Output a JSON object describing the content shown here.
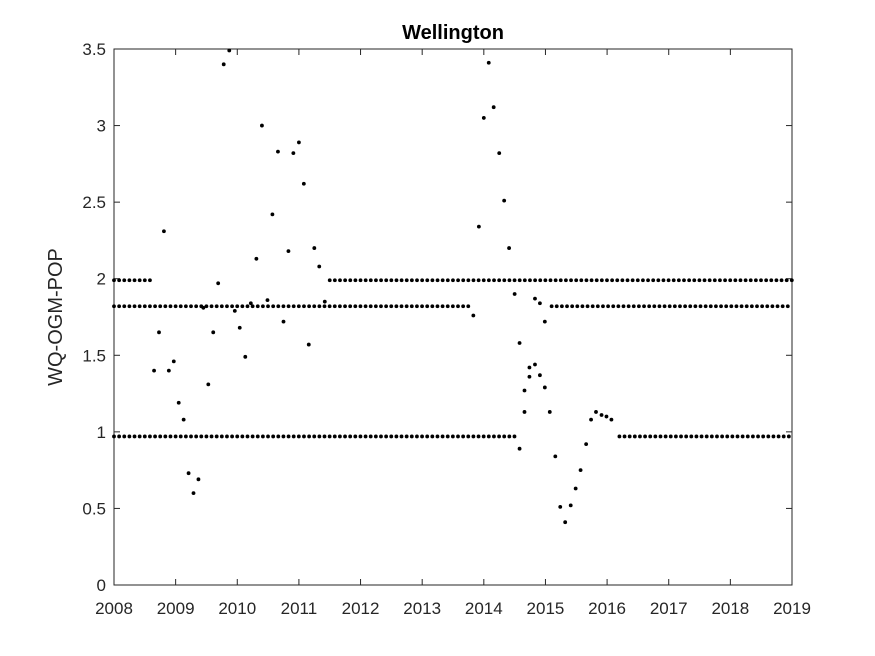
{
  "chart_data": {
    "type": "scatter",
    "title": "Wellington",
    "xlabel": "",
    "ylabel": "WQ-OGM-POP",
    "xlim": [
      2008,
      2019
    ],
    "ylim": [
      0,
      3.5
    ],
    "x_ticks": [
      "2008",
      "2009",
      "2010",
      "2011",
      "2012",
      "2013",
      "2014",
      "2015",
      "2016",
      "2017",
      "2018",
      "2019"
    ],
    "y_ticks": [
      "0",
      "0.5",
      "1",
      "1.5",
      "2",
      "2.5",
      "3",
      "3.5"
    ],
    "grid": false,
    "marker_color": "#000000",
    "series": [
      {
        "baselines": [
          {
            "y": 0.97,
            "segments": [
              [
                2008.0,
                2014.5
              ],
              [
                2016.2,
                2019.0
              ]
            ]
          },
          {
            "y": 1.82,
            "segments": [
              [
                2008.0,
                2013.8
              ],
              [
                2015.1,
                2019.0
              ]
            ]
          },
          {
            "y": 1.99,
            "segments": [
              [
                2008.0,
                2008.6
              ],
              [
                2011.5,
                2019.0
              ]
            ]
          }
        ],
        "step": 0.0833,
        "points": [
          [
            2008.65,
            1.4
          ],
          [
            2008.73,
            1.65
          ],
          [
            2008.81,
            2.31
          ],
          [
            2008.89,
            1.4
          ],
          [
            2008.97,
            1.46
          ],
          [
            2009.05,
            1.19
          ],
          [
            2009.13,
            1.08
          ],
          [
            2009.21,
            0.73
          ],
          [
            2009.29,
            0.6
          ],
          [
            2009.37,
            0.69
          ],
          [
            2009.45,
            1.81
          ],
          [
            2009.53,
            1.31
          ],
          [
            2009.61,
            1.65
          ],
          [
            2009.69,
            1.97
          ],
          [
            2009.78,
            3.4
          ],
          [
            2009.87,
            3.49
          ],
          [
            2009.96,
            1.79
          ],
          [
            2010.04,
            1.68
          ],
          [
            2010.13,
            1.49
          ],
          [
            2010.22,
            1.84
          ],
          [
            2010.31,
            2.13
          ],
          [
            2010.4,
            3.0
          ],
          [
            2010.49,
            1.86
          ],
          [
            2010.57,
            2.42
          ],
          [
            2010.66,
            2.83
          ],
          [
            2010.75,
            1.72
          ],
          [
            2010.83,
            2.18
          ],
          [
            2010.91,
            2.82
          ],
          [
            2011.0,
            2.89
          ],
          [
            2011.08,
            2.62
          ],
          [
            2011.16,
            1.57
          ],
          [
            2011.25,
            2.2
          ],
          [
            2011.33,
            2.08
          ],
          [
            2011.42,
            1.85
          ],
          [
            2013.83,
            1.76
          ],
          [
            2013.92,
            2.34
          ],
          [
            2014.0,
            3.05
          ],
          [
            2014.08,
            3.41
          ],
          [
            2014.16,
            3.12
          ],
          [
            2014.25,
            2.82
          ],
          [
            2014.33,
            2.51
          ],
          [
            2014.41,
            2.2
          ],
          [
            2014.5,
            1.9
          ],
          [
            2014.58,
            1.58
          ],
          [
            2014.58,
            0.89
          ],
          [
            2014.66,
            1.13
          ],
          [
            2014.66,
            1.27
          ],
          [
            2014.74,
            1.36
          ],
          [
            2014.74,
            1.42
          ],
          [
            2014.83,
            1.44
          ],
          [
            2014.83,
            1.87
          ],
          [
            2014.91,
            1.37
          ],
          [
            2014.91,
            1.84
          ],
          [
            2014.99,
            1.29
          ],
          [
            2014.99,
            1.72
          ],
          [
            2015.07,
            1.13
          ],
          [
            2015.16,
            0.84
          ],
          [
            2015.24,
            0.51
          ],
          [
            2015.32,
            0.41
          ],
          [
            2015.41,
            0.52
          ],
          [
            2015.49,
            0.63
          ],
          [
            2015.57,
            0.75
          ],
          [
            2015.66,
            0.92
          ],
          [
            2015.74,
            1.08
          ],
          [
            2015.82,
            1.13
          ],
          [
            2015.91,
            1.11
          ],
          [
            2015.99,
            1.1
          ],
          [
            2016.07,
            1.08
          ]
        ]
      }
    ]
  }
}
